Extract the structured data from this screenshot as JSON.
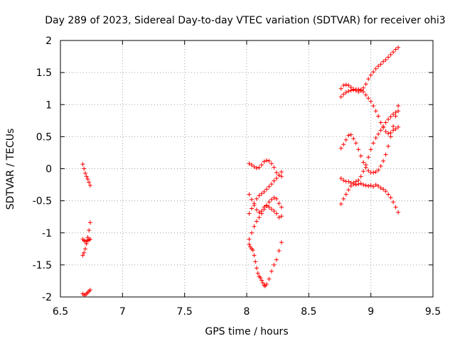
{
  "chart_data": {
    "type": "scatter",
    "title": "Day 289 of 2023, Sidereal Day-to-day VTEC variation (SDTVAR) for receiver ohi3",
    "xlabel": "GPS time / hours",
    "ylabel": "SDTVAR / TECUs",
    "xlim": [
      6.5,
      9.5
    ],
    "ylim": [
      -2,
      2
    ],
    "xticks": [
      6.5,
      7,
      7.5,
      8,
      8.5,
      9,
      9.5
    ],
    "xtick_labels": [
      "6.5",
      "7",
      "7.5",
      "8",
      "8.5",
      "9",
      "9.5"
    ],
    "yticks": [
      -2,
      -1.5,
      -1,
      -0.5,
      0,
      0.5,
      1,
      1.5,
      2
    ],
    "ytick_labels": [
      "-2",
      "-1.5",
      "-1",
      "-0.5",
      "0",
      "0.5",
      "1",
      "1.5",
      "2"
    ],
    "grid": true,
    "marker": "+",
    "color": "#ff0000",
    "series": [
      {
        "name": "s1",
        "x": [
          6.68,
          6.69,
          6.7,
          6.71,
          6.72,
          6.73,
          6.74
        ],
        "y": [
          0.07,
          0.0,
          -0.07,
          -0.12,
          -0.16,
          -0.21,
          -0.26
        ]
      },
      {
        "name": "s2",
        "x": [
          6.68,
          6.69,
          6.7,
          6.71,
          6.72,
          6.73,
          6.74
        ],
        "y": [
          -1.35,
          -1.31,
          -1.25,
          -1.17,
          -1.07,
          -0.96,
          -0.84
        ]
      },
      {
        "name": "s3",
        "x": [
          6.68,
          6.69,
          6.7,
          6.71,
          6.72,
          6.73,
          6.74
        ],
        "y": [
          -1.1,
          -1.12,
          -1.13,
          -1.13,
          -1.12,
          -1.11,
          -1.1
        ]
      },
      {
        "name": "s4",
        "x": [
          6.68,
          6.69,
          6.7,
          6.71,
          6.72,
          6.73,
          6.74
        ],
        "y": [
          -1.95,
          -1.97,
          -1.97,
          -1.95,
          -1.93,
          -1.91,
          -1.89
        ]
      },
      {
        "name": "s5",
        "x": [
          8.02,
          8.04,
          8.06,
          8.08,
          8.1,
          8.12,
          8.14,
          8.16,
          8.18,
          8.2,
          8.22,
          8.24,
          8.26,
          8.28
        ],
        "y": [
          0.08,
          0.06,
          0.03,
          0.01,
          0.02,
          0.06,
          0.11,
          0.13,
          0.12,
          0.08,
          0.02,
          -0.06,
          -0.1,
          -0.12
        ]
      },
      {
        "name": "s6",
        "x": [
          8.02,
          8.04,
          8.06,
          8.08,
          8.1,
          8.12,
          8.14,
          8.16,
          8.18,
          8.2,
          8.22,
          8.24,
          8.26,
          8.28
        ],
        "y": [
          -0.4,
          -0.48,
          -0.57,
          -0.64,
          -0.68,
          -0.66,
          -0.6,
          -0.58,
          -0.6,
          -0.63,
          -0.66,
          -0.7,
          -0.76,
          -0.74
        ]
      },
      {
        "name": "s7",
        "x": [
          8.02,
          8.04,
          8.06,
          8.08,
          8.1,
          8.12,
          8.14,
          8.16,
          8.18,
          8.2,
          8.22,
          8.24,
          8.26,
          8.28
        ],
        "y": [
          -0.7,
          -0.62,
          -0.54,
          -0.47,
          -0.42,
          -0.39,
          -0.36,
          -0.32,
          -0.28,
          -0.24,
          -0.19,
          -0.15,
          -0.1,
          -0.05
        ]
      },
      {
        "name": "s8",
        "x": [
          8.02,
          8.04,
          8.06,
          8.08,
          8.1,
          8.12,
          8.14,
          8.16,
          8.18,
          8.2,
          8.22,
          8.24,
          8.26,
          8.28
        ],
        "y": [
          -1.1,
          -1.0,
          -0.9,
          -0.82,
          -0.76,
          -0.7,
          -0.63,
          -0.57,
          -0.52,
          -0.48,
          -0.45,
          -0.47,
          -0.54,
          -0.6
        ]
      },
      {
        "name": "s9",
        "x": [
          8.02,
          8.03,
          8.04,
          8.05,
          8.06,
          8.07,
          8.08,
          8.09,
          8.1,
          8.11,
          8.12,
          8.13,
          8.14,
          8.15,
          8.16,
          8.18,
          8.2,
          8.22,
          8.24,
          8.26,
          8.28
        ],
        "y": [
          -1.18,
          -1.22,
          -1.25,
          -1.27,
          -1.35,
          -1.45,
          -1.55,
          -1.63,
          -1.68,
          -1.7,
          -1.74,
          -1.78,
          -1.82,
          -1.83,
          -1.8,
          -1.72,
          -1.6,
          -1.5,
          -1.42,
          -1.28,
          -1.15
        ]
      },
      {
        "name": "s10",
        "x": [
          8.76,
          8.78,
          8.8,
          8.82,
          8.84,
          8.86,
          8.88,
          8.9,
          8.92,
          8.94,
          8.96,
          8.98,
          9.0,
          9.02,
          9.04,
          9.06,
          9.08,
          9.1,
          9.12,
          9.14,
          9.16,
          9.18,
          9.2,
          9.22
        ],
        "y": [
          1.25,
          1.3,
          1.31,
          1.3,
          1.27,
          1.24,
          1.22,
          1.2,
          1.22,
          1.26,
          1.32,
          1.4,
          1.46,
          1.51,
          1.56,
          1.6,
          1.63,
          1.67,
          1.7,
          1.74,
          1.78,
          1.82,
          1.86,
          1.89
        ]
      },
      {
        "name": "s11",
        "x": [
          8.76,
          8.78,
          8.8,
          8.82,
          8.84,
          8.86,
          8.88,
          8.9,
          8.92,
          8.94,
          8.96,
          8.98,
          9.0,
          9.02,
          9.04,
          9.06,
          9.08,
          9.1,
          9.12,
          9.14,
          9.16,
          9.18,
          9.2,
          9.22
        ],
        "y": [
          1.12,
          1.16,
          1.19,
          1.21,
          1.22,
          1.23,
          1.24,
          1.24,
          1.23,
          1.2,
          1.15,
          1.1,
          1.05,
          0.98,
          0.9,
          0.82,
          0.72,
          0.64,
          0.58,
          0.55,
          0.56,
          0.6,
          0.62,
          0.65
        ]
      },
      {
        "name": "s12",
        "x": [
          8.76,
          8.78,
          8.8,
          8.82,
          8.84,
          8.86,
          8.88,
          8.9,
          8.92,
          8.94,
          8.96,
          8.98,
          9.0,
          9.02,
          9.04,
          9.06,
          9.08,
          9.1,
          9.12,
          9.14,
          9.16,
          9.18,
          9.2,
          9.22
        ],
        "y": [
          -0.15,
          -0.18,
          -0.2,
          -0.2,
          -0.22,
          -0.24,
          -0.25,
          -0.24,
          -0.23,
          -0.25,
          -0.26,
          -0.27,
          -0.26,
          -0.28,
          -0.25,
          -0.27,
          -0.3,
          -0.32,
          -0.35,
          -0.4,
          -0.45,
          -0.52,
          -0.6,
          -0.68
        ]
      },
      {
        "name": "s13",
        "x": [
          8.76,
          8.78,
          8.8,
          8.82,
          8.84,
          8.86,
          8.88,
          8.9,
          8.92,
          8.94,
          8.96,
          8.98,
          9.0,
          9.02,
          9.04,
          9.06,
          9.08,
          9.1,
          9.12,
          9.14,
          9.16,
          9.18,
          9.2,
          9.22
        ],
        "y": [
          0.32,
          0.38,
          0.45,
          0.52,
          0.53,
          0.47,
          0.4,
          0.3,
          0.2,
          0.1,
          0.02,
          -0.03,
          -0.06,
          -0.06,
          -0.05,
          -0.02,
          0.04,
          0.12,
          0.22,
          0.35,
          0.5,
          0.66,
          0.82,
          0.98
        ]
      },
      {
        "name": "s14",
        "x": [
          8.76,
          8.78,
          8.8,
          8.82,
          8.84,
          8.86,
          8.88,
          8.9,
          8.92,
          8.94,
          8.96,
          8.98,
          9.0,
          9.02,
          9.04,
          9.06,
          9.08,
          9.1,
          9.12,
          9.14,
          9.16,
          9.18,
          9.2,
          9.22
        ],
        "y": [
          -0.55,
          -0.47,
          -0.4,
          -0.33,
          -0.27,
          -0.22,
          -0.2,
          -0.18,
          -0.12,
          -0.04,
          0.06,
          0.18,
          0.3,
          0.4,
          0.48,
          0.54,
          0.6,
          0.66,
          0.72,
          0.77,
          0.81,
          0.85,
          0.88,
          0.9
        ]
      }
    ]
  }
}
